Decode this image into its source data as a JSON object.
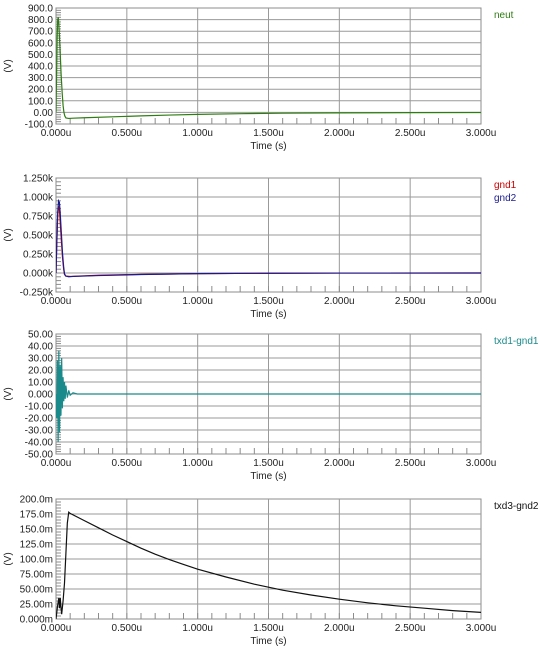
{
  "chart_data": [
    {
      "type": "line",
      "xlabel": "Time (s)",
      "ylabel": "(V)",
      "xlim": [
        0,
        3.0
      ],
      "ylim": [
        -100,
        900
      ],
      "x_ticks": [
        "0.000u",
        "0.500u",
        "1.000u",
        "1.500u",
        "2.000u",
        "2.500u",
        "3.000u"
      ],
      "y_ticks": [
        "900.0",
        "800.0",
        "700.0",
        "600.0",
        "500.0",
        "400.0",
        "300.0",
        "200.0",
        "100.0",
        "0.00",
        "-100.0"
      ],
      "series": [
        {
          "name": "neut",
          "color": "#2e7d12",
          "points": [
            [
              0.0,
              0
            ],
            [
              0.004,
              330
            ],
            [
              0.008,
              640
            ],
            [
              0.012,
              800
            ],
            [
              0.016,
              820
            ],
            [
              0.02,
              760
            ],
            [
              0.028,
              560
            ],
            [
              0.036,
              330
            ],
            [
              0.044,
              160
            ],
            [
              0.05,
              60
            ],
            [
              0.056,
              0
            ],
            [
              0.062,
              -30
            ],
            [
              0.07,
              -48
            ],
            [
              0.09,
              -52
            ],
            [
              0.12,
              -50
            ],
            [
              0.2,
              -46
            ],
            [
              0.4,
              -38
            ],
            [
              0.6,
              -30
            ],
            [
              0.8,
              -23
            ],
            [
              1.0,
              -17
            ],
            [
              1.3,
              -11
            ],
            [
              1.6,
              -7
            ],
            [
              2.0,
              -4
            ],
            [
              2.5,
              -2
            ],
            [
              3.0,
              -1
            ]
          ]
        }
      ]
    },
    {
      "type": "line",
      "xlabel": "Time (s)",
      "ylabel": "(V)",
      "xlim": [
        0,
        3.0
      ],
      "ylim": [
        -0.25,
        1.25
      ],
      "y_unit": "k",
      "x_ticks": [
        "0.000u",
        "0.500u",
        "1.000u",
        "1.500u",
        "2.000u",
        "2.500u",
        "3.000u"
      ],
      "y_ticks": [
        "1.250k",
        "1.000k",
        "0.750k",
        "0.500k",
        "0.250k",
        "0.000k",
        "-0.250k"
      ],
      "series": [
        {
          "name": "gnd1",
          "color": "#cc0000",
          "points": [
            [
              0.0,
              0
            ],
            [
              0.006,
              0.4
            ],
            [
              0.012,
              0.75
            ],
            [
              0.018,
              0.88
            ],
            [
              0.024,
              0.84
            ],
            [
              0.03,
              0.66
            ],
            [
              0.038,
              0.42
            ],
            [
              0.046,
              0.2
            ],
            [
              0.054,
              0.05
            ],
            [
              0.06,
              -0.02
            ],
            [
              0.07,
              -0.04
            ],
            [
              0.1,
              -0.045
            ],
            [
              0.3,
              -0.03
            ],
            [
              0.6,
              -0.018
            ],
            [
              1.0,
              -0.008
            ],
            [
              1.5,
              -0.003
            ],
            [
              2.0,
              -0.001
            ],
            [
              3.0,
              0
            ]
          ]
        },
        {
          "name": "gnd2",
          "color": "#1a1a90",
          "points": [
            [
              0.0,
              0
            ],
            [
              0.006,
              0.45
            ],
            [
              0.012,
              0.8
            ],
            [
              0.018,
              0.95
            ],
            [
              0.024,
              0.93
            ],
            [
              0.03,
              0.78
            ],
            [
              0.038,
              0.52
            ],
            [
              0.046,
              0.26
            ],
            [
              0.054,
              0.08
            ],
            [
              0.06,
              -0.01
            ],
            [
              0.068,
              -0.04
            ],
            [
              0.09,
              -0.05
            ],
            [
              0.12,
              -0.045
            ],
            [
              0.3,
              -0.034
            ],
            [
              0.6,
              -0.02
            ],
            [
              1.0,
              -0.008
            ],
            [
              1.5,
              -0.003
            ],
            [
              2.0,
              -0.001
            ],
            [
              3.0,
              0
            ]
          ]
        }
      ]
    },
    {
      "type": "line",
      "xlabel": "Time (s)",
      "ylabel": "(V)",
      "xlim": [
        0,
        3.0
      ],
      "ylim": [
        -50,
        50
      ],
      "x_ticks": [
        "0.000u",
        "0.500u",
        "1.000u",
        "1.500u",
        "2.000u",
        "2.500u",
        "3.000u"
      ],
      "y_ticks": [
        "50.00",
        "40.00",
        "30.00",
        "20.00",
        "10.00",
        "0.000",
        "-10.00",
        "-20.00",
        "-30.00",
        "-40.00",
        "-50.00"
      ],
      "series": [
        {
          "name": "txd1-gnd1",
          "color": "#1a8a8a",
          "points": [
            [
              0.0,
              0
            ],
            [
              0.005,
              -20
            ],
            [
              0.01,
              28
            ],
            [
              0.015,
              -40
            ],
            [
              0.02,
              36
            ],
            [
              0.025,
              -32
            ],
            [
              0.03,
              24
            ],
            [
              0.035,
              -18
            ],
            [
              0.04,
              30
            ],
            [
              0.045,
              -12
            ],
            [
              0.05,
              14
            ],
            [
              0.055,
              -6
            ],
            [
              0.06,
              10
            ],
            [
              0.065,
              -4
            ],
            [
              0.07,
              7
            ],
            [
              0.08,
              -3
            ],
            [
              0.09,
              3
            ],
            [
              0.1,
              -1
            ],
            [
              0.12,
              1
            ],
            [
              0.15,
              0
            ],
            [
              0.5,
              0
            ],
            [
              1.0,
              0
            ],
            [
              1.5,
              0
            ],
            [
              2.0,
              0
            ],
            [
              2.5,
              0
            ],
            [
              3.0,
              0
            ]
          ]
        }
      ]
    },
    {
      "type": "line",
      "xlabel": "Time (s)",
      "ylabel": "(V)",
      "xlim": [
        0,
        3.0
      ],
      "ylim": [
        0,
        200
      ],
      "y_unit": "m",
      "x_ticks": [
        "0.000u",
        "0.500u",
        "1.000u",
        "1.500u",
        "2.000u",
        "2.500u",
        "3.000u"
      ],
      "y_ticks": [
        "200.0m",
        "175.0m",
        "150.0m",
        "125.0m",
        "100.0m",
        "75.00m",
        "50.00m",
        "25.00m",
        "0.000m"
      ],
      "series": [
        {
          "name": "txd3-gnd2",
          "color": "#111111",
          "points": [
            [
              0.0,
              0
            ],
            [
              0.01,
              20
            ],
            [
              0.02,
              35
            ],
            [
              0.025,
              18
            ],
            [
              0.03,
              35
            ],
            [
              0.035,
              20
            ],
            [
              0.04,
              8
            ],
            [
              0.05,
              30
            ],
            [
              0.06,
              60
            ],
            [
              0.07,
              110
            ],
            [
              0.08,
              160
            ],
            [
              0.09,
              178
            ],
            [
              0.1,
              176
            ],
            [
              0.2,
              164
            ],
            [
              0.3,
              152
            ],
            [
              0.4,
              140
            ],
            [
              0.5,
              129
            ],
            [
              0.6,
              118
            ],
            [
              0.7,
              108
            ],
            [
              0.8,
              99
            ],
            [
              0.9,
              91
            ],
            [
              1.0,
              83
            ],
            [
              1.2,
              70
            ],
            [
              1.4,
              58
            ],
            [
              1.6,
              48
            ],
            [
              1.8,
              40
            ],
            [
              2.0,
              33
            ],
            [
              2.2,
              27
            ],
            [
              2.4,
              22
            ],
            [
              2.6,
              18
            ],
            [
              2.8,
              14
            ],
            [
              3.0,
              11
            ]
          ]
        }
      ]
    }
  ]
}
